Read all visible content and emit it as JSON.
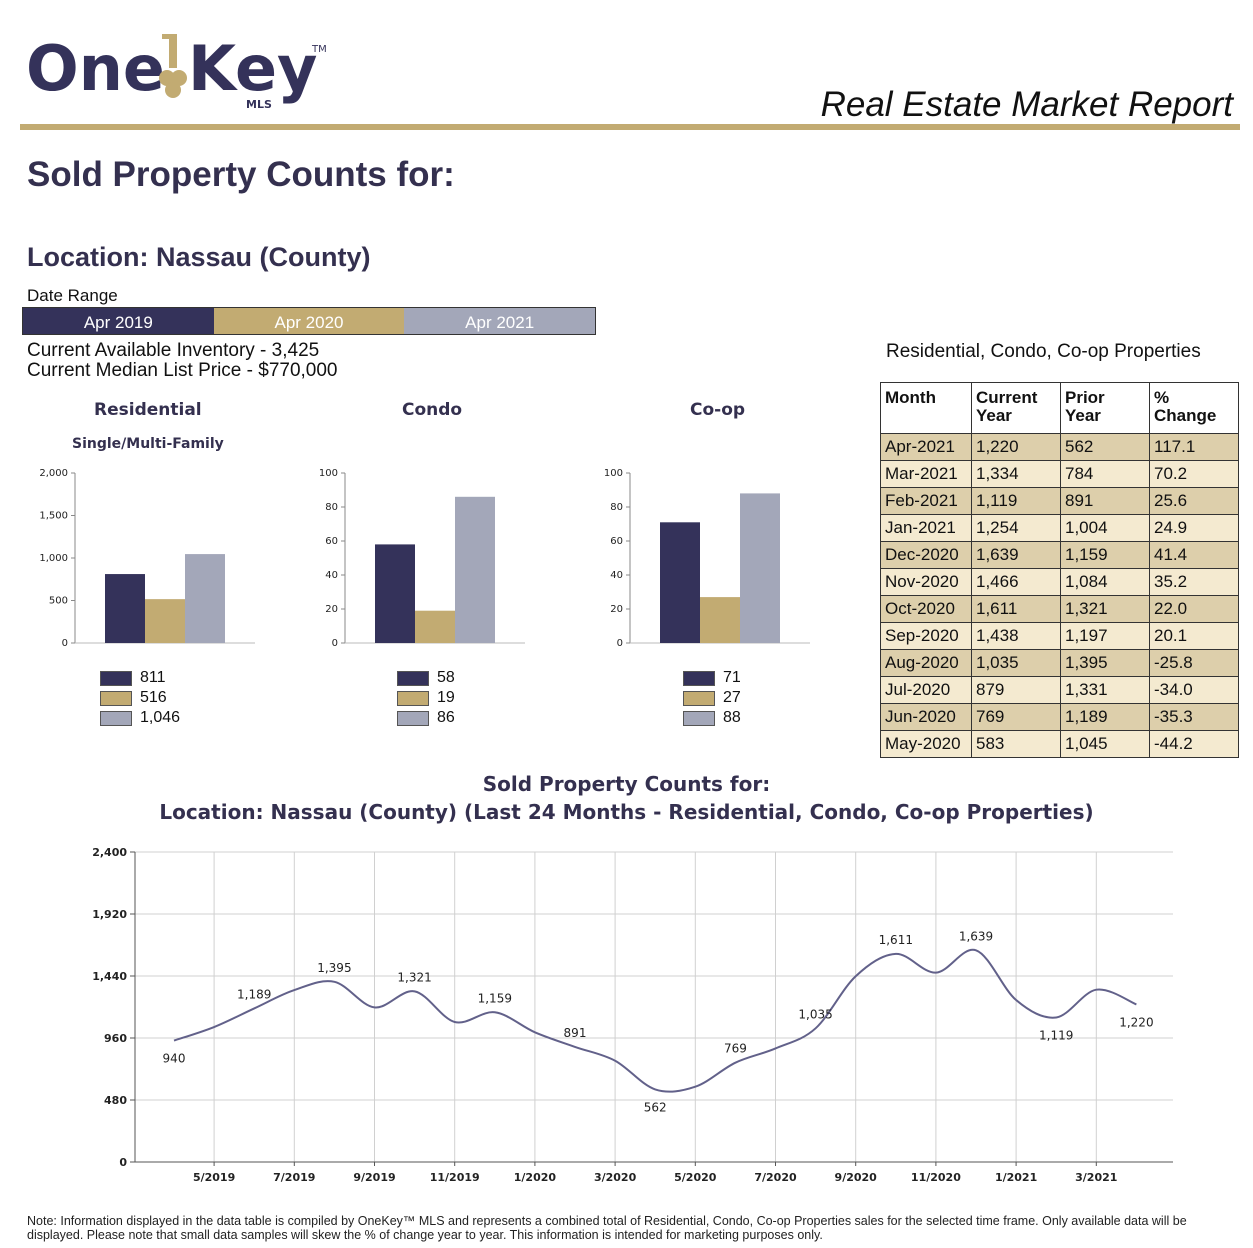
{
  "header": {
    "logo_text": "OneKey™ MLS",
    "report_title": "Real Estate Market Report"
  },
  "main_title": "Sold Property Counts for:",
  "location": "Location: Nassau (County)",
  "date_range": {
    "label": "Date Range",
    "periods": [
      "Apr 2019",
      "Apr 2020",
      "Apr 2021"
    ]
  },
  "colors": {
    "period_2019": "#34325a",
    "period_2020": "#c2ab72",
    "period_2021": "#a3a7b9",
    "accent_rule": "#c2ab72",
    "line": "#62618a"
  },
  "inventory": {
    "line1": "Current Available Inventory - 3,425",
    "line2": "Current Median List Price - $770,000"
  },
  "table": {
    "caption": "Residential, Condo, Co-op Properties",
    "headers": [
      "Month",
      "Current Year",
      "Prior Year",
      "% Change"
    ],
    "rows": [
      [
        "Apr-2021",
        "1,220",
        "562",
        "117.1"
      ],
      [
        "Mar-2021",
        "1,334",
        "784",
        "70.2"
      ],
      [
        "Feb-2021",
        "1,119",
        "891",
        "25.6"
      ],
      [
        "Jan-2021",
        "1,254",
        "1,004",
        "24.9"
      ],
      [
        "Dec-2020",
        "1,639",
        "1,159",
        "41.4"
      ],
      [
        "Nov-2020",
        "1,466",
        "1,084",
        "35.2"
      ],
      [
        "Oct-2020",
        "1,611",
        "1,321",
        "22.0"
      ],
      [
        "Sep-2020",
        "1,438",
        "1,197",
        "20.1"
      ],
      [
        "Aug-2020",
        "1,035",
        "1,395",
        "-25.8"
      ],
      [
        "Jul-2020",
        "879",
        "1,331",
        "-34.0"
      ],
      [
        "Jun-2020",
        "769",
        "1,189",
        "-35.3"
      ],
      [
        "May-2020",
        "583",
        "1,045",
        "-44.2"
      ]
    ]
  },
  "line_chart_title": {
    "line1": "Sold Property Counts for:",
    "line2": "Location: Nassau (County) (Last 24 Months - Residential, Condo, Co-op Properties)"
  },
  "chart_data": [
    {
      "type": "bar",
      "title": "Residential",
      "subtitle": "Single/Multi-Family",
      "categories": [
        "Apr 2019",
        "Apr 2020",
        "Apr 2021"
      ],
      "values": [
        811,
        516,
        1046
      ],
      "value_labels": [
        "811",
        "516",
        "1,046"
      ],
      "ylim": [
        0,
        2000
      ],
      "yticks": [
        0,
        500,
        1000,
        1500,
        2000
      ],
      "ytick_labels": [
        "0",
        "500",
        "1,000",
        "1,500",
        "2,000"
      ],
      "legend": "below"
    },
    {
      "type": "bar",
      "title": "Condo",
      "categories": [
        "Apr 2019",
        "Apr 2020",
        "Apr 2021"
      ],
      "values": [
        58,
        19,
        86
      ],
      "value_labels": [
        "58",
        "19",
        "86"
      ],
      "ylim": [
        0,
        100
      ],
      "yticks": [
        0,
        20,
        40,
        60,
        80,
        100
      ],
      "ytick_labels": [
        "0",
        "20",
        "40",
        "60",
        "80",
        "100"
      ],
      "legend": "below"
    },
    {
      "type": "bar",
      "title": "Co-op",
      "categories": [
        "Apr 2019",
        "Apr 2020",
        "Apr 2021"
      ],
      "values": [
        71,
        27,
        88
      ],
      "value_labels": [
        "71",
        "27",
        "88"
      ],
      "ylim": [
        0,
        100
      ],
      "yticks": [
        0,
        20,
        40,
        60,
        80,
        100
      ],
      "ytick_labels": [
        "0",
        "20",
        "40",
        "60",
        "80",
        "100"
      ],
      "legend": "below"
    },
    {
      "type": "line",
      "title": "Sold Property Counts for: Location: Nassau (County) (Last 24 Months - Residential, Condo, Co-op Properties)",
      "x": [
        "2019-04",
        "2019-05",
        "2019-06",
        "2019-07",
        "2019-08",
        "2019-09",
        "2019-10",
        "2019-11",
        "2019-12",
        "2020-01",
        "2020-02",
        "2020-03",
        "2020-04",
        "2020-05",
        "2020-06",
        "2020-07",
        "2020-08",
        "2020-09",
        "2020-10",
        "2020-11",
        "2020-12",
        "2021-01",
        "2021-02",
        "2021-03",
        "2021-04"
      ],
      "values": [
        940,
        1045,
        1189,
        1331,
        1395,
        1197,
        1321,
        1084,
        1159,
        1004,
        891,
        784,
        562,
        583,
        769,
        879,
        1035,
        1438,
        1611,
        1466,
        1639,
        1254,
        1119,
        1334,
        1220
      ],
      "point_labels": {
        "2019-04": "940",
        "2019-06": "1,189",
        "2019-08": "1,395",
        "2019-10": "1,321",
        "2019-12": "1,159",
        "2020-02": "891",
        "2020-04": "562",
        "2020-06": "769",
        "2020-08": "1,035",
        "2020-10": "1,611",
        "2020-12": "1,639",
        "2021-02": "1,119",
        "2021-04": "1,220"
      },
      "ylim": [
        0,
        2400
      ],
      "yticks": [
        0,
        480,
        960,
        1440,
        1920,
        2400
      ],
      "ytick_labels": [
        "0",
        "480",
        "960",
        "1,440",
        "1,920",
        "2,400"
      ],
      "xtick_labels": [
        "5/2019",
        "7/2019",
        "9/2019",
        "11/2019",
        "1/2020",
        "3/2020",
        "5/2020",
        "7/2020",
        "9/2020",
        "11/2020",
        "1/2021",
        "3/2021"
      ],
      "grid": true
    }
  ],
  "footnote": "Note: Information displayed in the data table is compiled by OneKey™ MLS and represents a combined total of Residential, Condo, Co-op Properties sales for the selected time frame. Only available data will be displayed. Please note that small data samples will skew the % of change year to year. This information is intended for marketing purposes only."
}
